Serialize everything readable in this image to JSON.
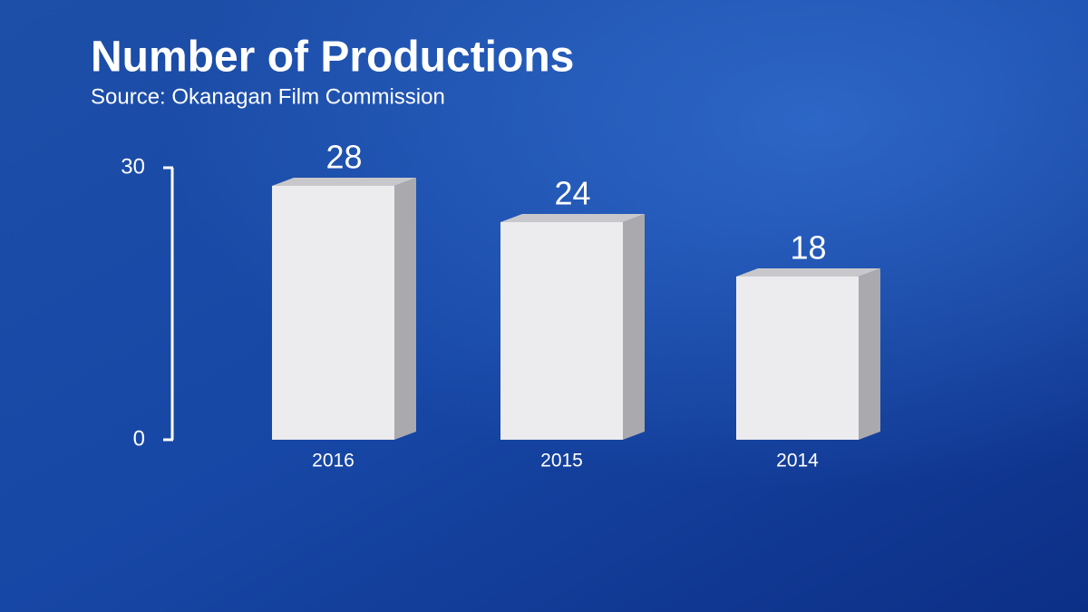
{
  "chart_data": {
    "type": "bar",
    "title": "Number of Productions",
    "subtitle": "Source: Okanagan Film Commission",
    "categories": [
      "2016",
      "2015",
      "2014"
    ],
    "values": [
      28,
      24,
      18
    ],
    "color": "#ececee",
    "ylim": [
      0,
      30
    ],
    "yticks": [
      0,
      30
    ],
    "grid": false
  }
}
